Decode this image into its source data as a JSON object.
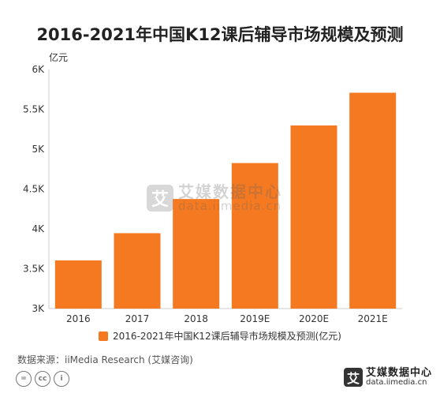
{
  "chart_data": {
    "type": "bar",
    "title": "2016-2021年中国K12课后辅导市场规模及预测",
    "unit": "亿元",
    "categories": [
      "2016",
      "2017",
      "2018",
      "2019E",
      "2020E",
      "2021E"
    ],
    "series": [
      {
        "name": "2016-2021年中国K12课后辅导市场规模及预测(亿元)",
        "values": [
          3605,
          3946,
          4375,
          4826,
          5298,
          5708
        ]
      }
    ],
    "ylim": [
      3000,
      6000
    ],
    "yticks": [
      3000,
      3500,
      4000,
      4500,
      5000,
      5500,
      6000
    ],
    "ytick_labels": [
      "3K",
      "3.5K",
      "4K",
      "4.5K",
      "5K",
      "5.5K",
      "6K"
    ],
    "grid": false,
    "legend_position": "bottom",
    "bar_color": "#f47920"
  },
  "source": "数据来源：iiMedia Research (艾媒咨询)",
  "watermark": {
    "cn": "艾媒数据中心",
    "en": "data.iimedia.cn",
    "glyph": "艾"
  },
  "brand": {
    "cn": "艾媒数据中心",
    "en": "data.iimedia.cn",
    "glyph": "艾"
  },
  "license_icons": [
    "=",
    "cc",
    "i"
  ]
}
